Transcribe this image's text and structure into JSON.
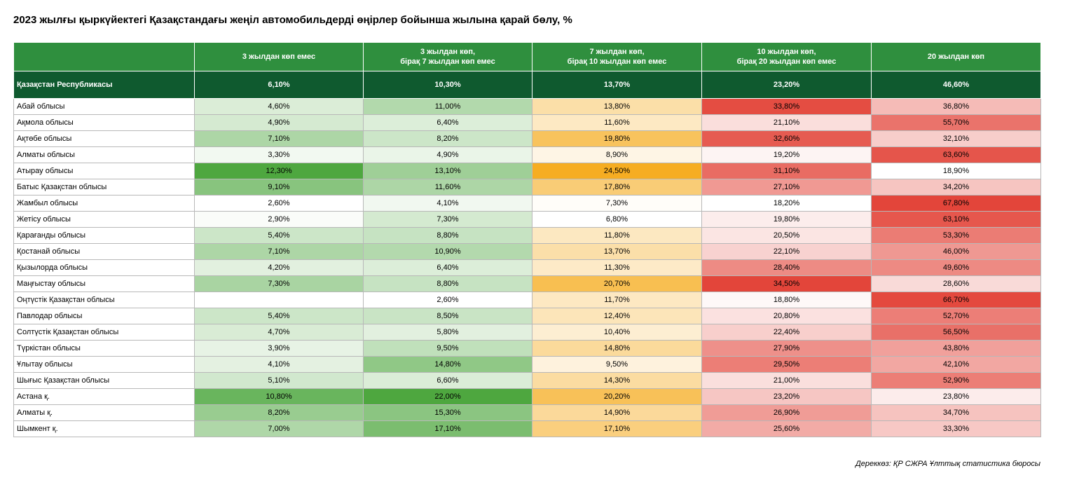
{
  "chart_data": {
    "type": "table",
    "title": "2023 жылғы қыркүйектегі Қазақстандағы жеңіл автомобильдерді өңірлер бойынша жылына қарай бөлу, %",
    "columns": [
      {
        "lines": [
          "3 жылдан көп емес"
        ]
      },
      {
        "lines": [
          "3 жылдан көп,",
          "бірақ 7 жылдан көп емес"
        ]
      },
      {
        "lines": [
          "7 жылдан көп,",
          "бірақ 10 жылдан көп емес"
        ]
      },
      {
        "lines": [
          "10 жылдан көп,",
          "бірақ 20 жылдан көп емес"
        ]
      },
      {
        "lines": [
          "20 жылдан көп"
        ]
      }
    ],
    "total": {
      "region": "Қазақстан Республикасы",
      "values": [
        "6,10%",
        "10,30%",
        "13,70%",
        "23,20%",
        "46,60%"
      ]
    },
    "rows": [
      {
        "region": "Абай облысы",
        "values": [
          "4,60%",
          "11,00%",
          "13,80%",
          "33,80%",
          "36,80%"
        ]
      },
      {
        "region": "Ақмола облысы",
        "values": [
          "4,90%",
          "6,40%",
          "11,60%",
          "21,10%",
          "55,70%"
        ]
      },
      {
        "region": "Ақтөбе облысы",
        "values": [
          "7,10%",
          "8,20%",
          "19,80%",
          "32,60%",
          "32,10%"
        ]
      },
      {
        "region": "Алматы облысы",
        "values": [
          "3,30%",
          "4,90%",
          "8,90%",
          "19,20%",
          "63,60%"
        ]
      },
      {
        "region": "Атырау облысы",
        "values": [
          "12,30%",
          "13,10%",
          "24,50%",
          "31,10%",
          "18,90%"
        ]
      },
      {
        "region": "Батыс Қазақстан облысы",
        "values": [
          "9,10%",
          "11,60%",
          "17,80%",
          "27,10%",
          "34,20%"
        ]
      },
      {
        "region": "Жамбыл облысы",
        "values": [
          "2,60%",
          "4,10%",
          "7,30%",
          "18,20%",
          "67,80%"
        ]
      },
      {
        "region": "Жетісу облысы",
        "values": [
          "2,90%",
          "7,30%",
          "6,80%",
          "19,80%",
          "63,10%"
        ]
      },
      {
        "region": "Қарағанды облысы",
        "values": [
          "5,40%",
          "8,80%",
          "11,80%",
          "20,50%",
          "53,30%"
        ]
      },
      {
        "region": "Қостанай облысы",
        "values": [
          "7,10%",
          "10,90%",
          "13,70%",
          "22,10%",
          "46,00%"
        ]
      },
      {
        "region": "Қызылорда облысы",
        "values": [
          "4,20%",
          "6,40%",
          "11,30%",
          "28,40%",
          "49,60%"
        ]
      },
      {
        "region": "Маңғыстау облысы",
        "values": [
          "7,30%",
          "8,80%",
          "20,70%",
          "34,50%",
          "28,60%"
        ]
      },
      {
        "region": "Оңтүстік Қазақстан облысы",
        "values": [
          "",
          "2,60%",
          "11,70%",
          "18,80%",
          "66,70%"
        ]
      },
      {
        "region": "Павлодар облысы",
        "values": [
          "5,40%",
          "8,50%",
          "12,40%",
          "20,80%",
          "52,70%"
        ]
      },
      {
        "region": "Солтүстік Қазақстан облысы",
        "values": [
          "4,70%",
          "5,80%",
          "10,40%",
          "22,40%",
          "56,50%"
        ]
      },
      {
        "region": "Түркістан облысы",
        "values": [
          "3,90%",
          "9,50%",
          "14,80%",
          "27,90%",
          "43,80%"
        ]
      },
      {
        "region": "Ұлытау облысы",
        "values": [
          "4,10%",
          "14,80%",
          "9,50%",
          "29,50%",
          "42,10%"
        ]
      },
      {
        "region": "Шығыс Қазақстан облысы",
        "values": [
          "5,10%",
          "6,60%",
          "14,30%",
          "21,00%",
          "52,90%"
        ]
      },
      {
        "region": "Астана қ.",
        "values": [
          "10,80%",
          "22,00%",
          "20,20%",
          "23,20%",
          "23,80%"
        ]
      },
      {
        "region": "Алматы қ.",
        "values": [
          "8,20%",
          "15,30%",
          "14,90%",
          "26,90%",
          "34,70%"
        ]
      },
      {
        "region": "Шымкент қ.",
        "values": [
          "7,00%",
          "17,10%",
          "17,10%",
          "25,60%",
          "33,30%"
        ]
      }
    ],
    "column_color_scales": [
      {
        "low": "#ffffff",
        "high": "#4ea73f"
      },
      {
        "low": "#ffffff",
        "high": "#4ea73f"
      },
      {
        "low": "#ffffff",
        "high": "#f6ad22"
      },
      {
        "low": "#ffffff",
        "high": "#e3453a"
      },
      {
        "low": "#ffffff",
        "high": "#e3453a"
      }
    ],
    "colors": {
      "header_bg": "#2f8f3e",
      "total_bg": "#0f5a2f"
    }
  },
  "source": "Дереккөз: ҚР СЖРА Ұлттық статистика бюросы"
}
